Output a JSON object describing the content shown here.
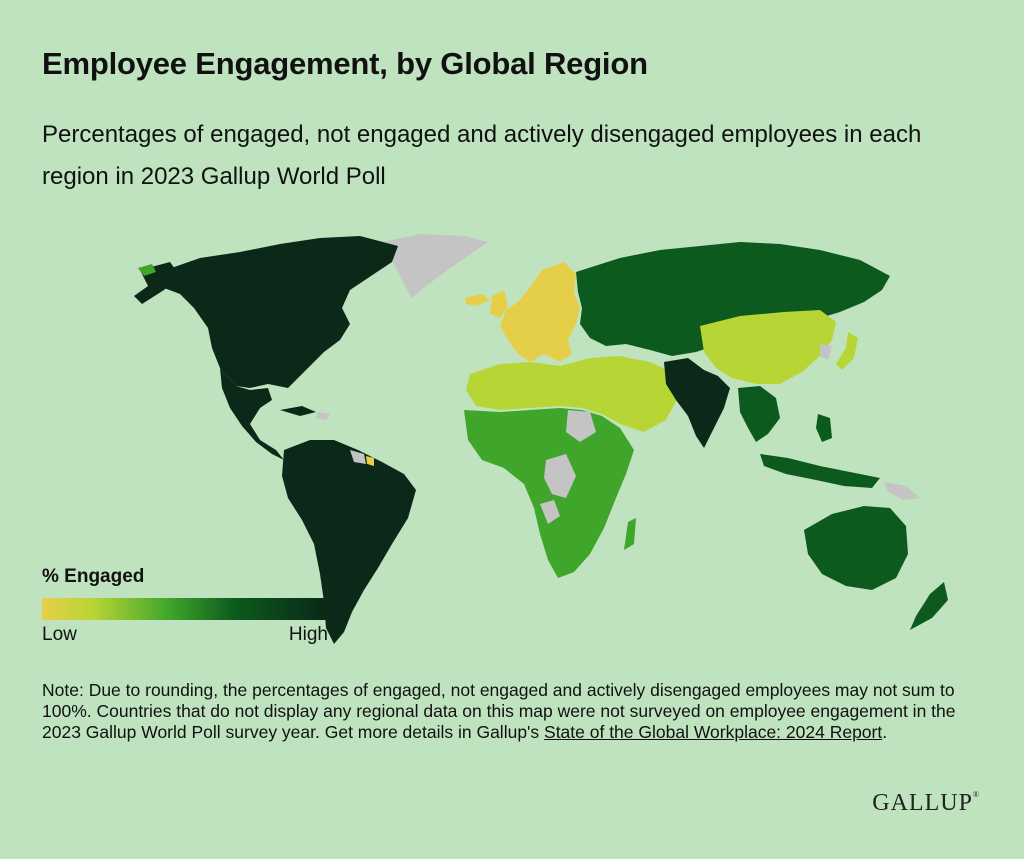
{
  "header": {
    "title": "Employee Engagement, by Global Region",
    "subtitle": "Percentages of engaged, not engaged and actively disengaged employees in each region in 2023 Gallup World Poll"
  },
  "legend": {
    "title": "% Engaged",
    "low_label": "Low",
    "high_label": "High"
  },
  "note": {
    "text": "Note: Due to rounding, the percentages of engaged, not engaged and actively disengaged employees may not sum to 100%. Countries that do not display any regional data on this map were not surveyed on employee engagement in the 2023 Gallup World Poll survey year. Get more details in Gallup's ",
    "link_text": "State of the Global Workplace: 2024 Report",
    "end": "."
  },
  "brand": {
    "logo_text": "GALLUP"
  },
  "colors": {
    "background": "#bfe3bf",
    "lowest": "#e6cf48",
    "low": "#b8d536",
    "mid": "#3fa52b",
    "high": "#0c5a1d",
    "highest": "#0b2818",
    "not_surveyed": "#c4c4c4"
  },
  "regions": [
    {
      "name": "Northern America",
      "shade": "highest"
    },
    {
      "name": "Latin America and Caribbean",
      "shade": "highest"
    },
    {
      "name": "Europe",
      "shade": "lowest"
    },
    {
      "name": "Post-Soviet Eurasia",
      "shade": "high"
    },
    {
      "name": "East Asia",
      "shade": "low"
    },
    {
      "name": "South Asia",
      "shade": "highest"
    },
    {
      "name": "Southeast Asia",
      "shade": "high"
    },
    {
      "name": "Australia and New Zealand",
      "shade": "high"
    },
    {
      "name": "Middle East and North Africa",
      "shade": "low"
    },
    {
      "name": "Sub-Saharan Africa",
      "shade": "mid"
    }
  ]
}
